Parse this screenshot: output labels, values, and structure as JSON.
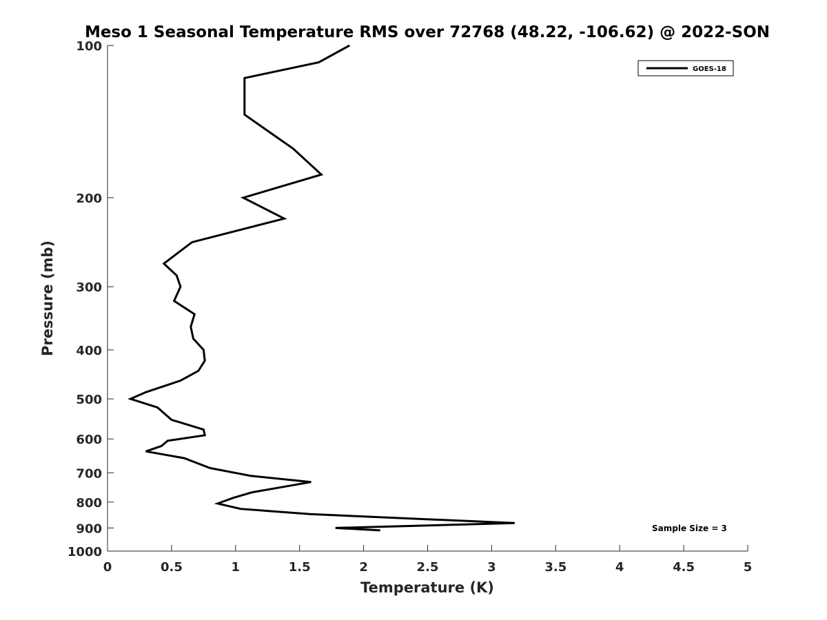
{
  "chart_data": {
    "type": "line",
    "title": "Meso 1 Seasonal Temperature RMS over 72768 (48.22, -106.62) @ 2022-SON",
    "xlabel": "Temperature (K)",
    "ylabel": "Pressure (mb)",
    "xlim": [
      0,
      5
    ],
    "ylim": [
      100,
      1000
    ],
    "y_scale": "log",
    "y_reversed": true,
    "x_ticks": [
      "0",
      "0.5",
      "1",
      "1.5",
      "2",
      "2.5",
      "3",
      "3.5",
      "4",
      "4.5",
      "5"
    ],
    "y_ticks": [
      "100",
      "200",
      "300",
      "400",
      "500",
      "600",
      "700",
      "800",
      "900",
      "1000"
    ],
    "grid": false,
    "legend": {
      "placement": "top-right",
      "entries": [
        "GOES-18"
      ]
    },
    "annotation": "Sample Size = 3",
    "series": [
      {
        "name": "GOES-18",
        "color": "#000000",
        "x": [
          1.89,
          1.65,
          1.07,
          1.07,
          1.45,
          1.67,
          1.06,
          1.38,
          0.66,
          0.44,
          0.54,
          0.57,
          0.52,
          0.68,
          0.65,
          0.67,
          0.75,
          0.76,
          0.71,
          0.57,
          0.3,
          0.18,
          0.39,
          0.5,
          0.75,
          0.76,
          0.47,
          0.42,
          0.3,
          0.6,
          0.8,
          1.12,
          1.59,
          1.39,
          1.13,
          0.98,
          0.86,
          1.04,
          1.58,
          3.18,
          1.78,
          2.13
        ],
        "y": [
          100,
          108,
          116,
          137,
          160,
          180,
          200,
          220,
          245,
          270,
          285,
          300,
          320,
          340,
          360,
          380,
          400,
          420,
          440,
          460,
          485,
          500,
          520,
          550,
          575,
          590,
          605,
          620,
          635,
          655,
          685,
          710,
          730,
          745,
          765,
          785,
          805,
          825,
          845,
          880,
          900,
          910
        ]
      }
    ]
  }
}
